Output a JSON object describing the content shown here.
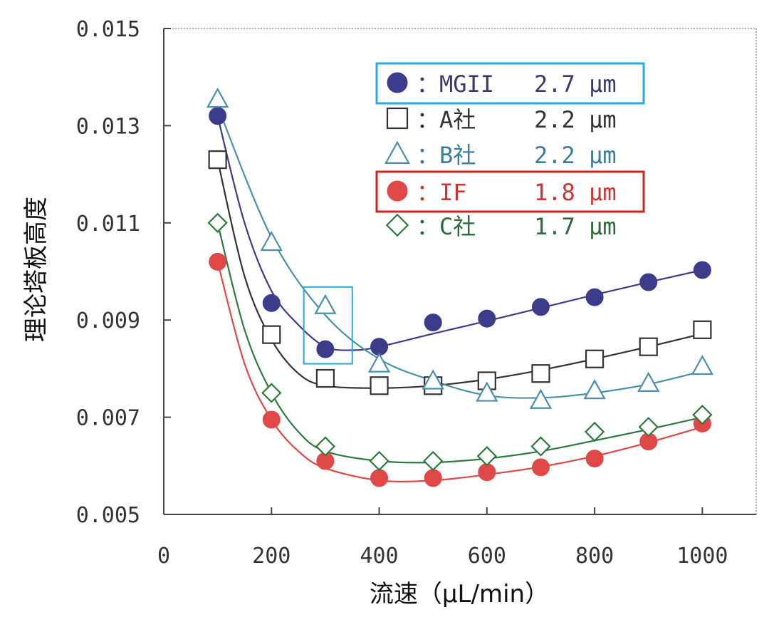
{
  "chart_data": {
    "type": "scatter",
    "title": "",
    "xlabel": "流速（μL/min）",
    "ylabel": "理论塔板高度",
    "xlim": [
      0,
      1100
    ],
    "ylim": [
      0.005,
      0.015
    ],
    "xticks": [
      "0",
      "200",
      "400",
      "600",
      "800",
      "1000"
    ],
    "yticks": [
      "0.005",
      "0.007",
      "0.009",
      "0.011",
      "0.013",
      "0.015"
    ],
    "legend_position": "top-right",
    "grid": false,
    "series": [
      {
        "name": "MGII",
        "legend_label": "：MGII",
        "size_label": "2.7 μm",
        "marker": "filled-circle",
        "color": "#3c3c8c",
        "label_color": "#3a3a6a",
        "highlight_box_color": "#2aa8dc",
        "x": [
          100,
          200,
          300,
          400,
          500,
          600,
          700,
          800,
          900,
          1000
        ],
        "y": [
          0.0132,
          0.00935,
          0.0084,
          0.00845,
          0.00895,
          0.00903,
          0.00927,
          0.00947,
          0.00978,
          0.01003
        ],
        "fit": [
          [
            100,
            0.0132
          ],
          [
            150,
            0.011
          ],
          [
            200,
            0.0096
          ],
          [
            250,
            0.0089
          ],
          [
            300,
            0.00845
          ],
          [
            350,
            0.00838
          ],
          [
            400,
            0.00845
          ],
          [
            500,
            0.00872
          ],
          [
            600,
            0.00898
          ],
          [
            700,
            0.00925
          ],
          [
            800,
            0.00952
          ],
          [
            900,
            0.00978
          ],
          [
            1000,
            0.01003
          ]
        ]
      },
      {
        "name": "A社",
        "legend_label": "：A社",
        "size_label": "2.2 μm",
        "marker": "open-square",
        "color": "#333333",
        "label_color": "#333333",
        "x": [
          100,
          200,
          300,
          400,
          500,
          600,
          700,
          800,
          900,
          1000
        ],
        "y": [
          0.0123,
          0.0087,
          0.0078,
          0.00765,
          0.00765,
          0.00775,
          0.0079,
          0.0082,
          0.00845,
          0.0088
        ],
        "fit": [
          [
            100,
            0.0123
          ],
          [
            150,
            0.0099
          ],
          [
            200,
            0.0086
          ],
          [
            250,
            0.0079
          ],
          [
            300,
            0.00765
          ],
          [
            400,
            0.0076
          ],
          [
            500,
            0.00765
          ],
          [
            600,
            0.00778
          ],
          [
            700,
            0.00797
          ],
          [
            800,
            0.0082
          ],
          [
            900,
            0.00845
          ],
          [
            1000,
            0.00872
          ]
        ]
      },
      {
        "name": "B社",
        "legend_label": "：B社",
        "size_label": "2.2 μm",
        "marker": "open-triangle",
        "color": "#4a90a8",
        "label_color": "#3a7e96",
        "x": [
          100,
          200,
          300,
          400,
          500,
          600,
          700,
          800,
          900,
          1000
        ],
        "y": [
          0.01355,
          0.0106,
          0.0093,
          0.0081,
          0.00775,
          0.0075,
          0.00735,
          0.00755,
          0.0077,
          0.00805
        ],
        "fit": [
          [
            100,
            0.0134
          ],
          [
            200,
            0.0107
          ],
          [
            300,
            0.0091
          ],
          [
            400,
            0.0082
          ],
          [
            500,
            0.00775
          ],
          [
            600,
            0.00745
          ],
          [
            700,
            0.0074
          ],
          [
            800,
            0.0075
          ],
          [
            900,
            0.00768
          ],
          [
            1000,
            0.00795
          ]
        ]
      },
      {
        "name": "IF",
        "legend_label": "：IF",
        "size_label": "1.8 μm",
        "marker": "filled-circle",
        "color": "#e04848",
        "label_color": "#cc3333",
        "highlight_box_color": "#cc2222",
        "x": [
          100,
          200,
          300,
          400,
          500,
          600,
          700,
          800,
          900,
          1000
        ],
        "y": [
          0.0102,
          0.00695,
          0.0061,
          0.00575,
          0.00575,
          0.00587,
          0.00597,
          0.00615,
          0.0065,
          0.00687
        ],
        "fit": [
          [
            100,
            0.0102
          ],
          [
            150,
            0.0081
          ],
          [
            200,
            0.00695
          ],
          [
            250,
            0.0063
          ],
          [
            300,
            0.00595
          ],
          [
            400,
            0.0057
          ],
          [
            500,
            0.0057
          ],
          [
            600,
            0.00582
          ],
          [
            700,
            0.00598
          ],
          [
            800,
            0.0062
          ],
          [
            900,
            0.00648
          ],
          [
            1000,
            0.0068
          ]
        ]
      },
      {
        "name": "C社",
        "legend_label": "：C社",
        "size_label": "1.7 μm",
        "marker": "open-diamond",
        "color": "#2e7a3e",
        "label_color": "#2e6a3a",
        "x": [
          100,
          200,
          300,
          400,
          500,
          600,
          700,
          800,
          900,
          1000
        ],
        "y": [
          0.011,
          0.0075,
          0.0064,
          0.0061,
          0.0061,
          0.0062,
          0.0064,
          0.0067,
          0.0068,
          0.00705
        ],
        "fit": [
          [
            100,
            0.011
          ],
          [
            150,
            0.0088
          ],
          [
            200,
            0.0075
          ],
          [
            250,
            0.0067
          ],
          [
            300,
            0.0063
          ],
          [
            400,
            0.0061
          ],
          [
            500,
            0.00607
          ],
          [
            600,
            0.00615
          ],
          [
            700,
            0.0063
          ],
          [
            800,
            0.00652
          ],
          [
            900,
            0.00675
          ],
          [
            1000,
            0.007
          ]
        ]
      }
    ],
    "annotation_box": {
      "color": "#2aa8dc",
      "x_range": [
        260,
        350
      ],
      "y_range": [
        0.0081,
        0.00968
      ]
    }
  }
}
